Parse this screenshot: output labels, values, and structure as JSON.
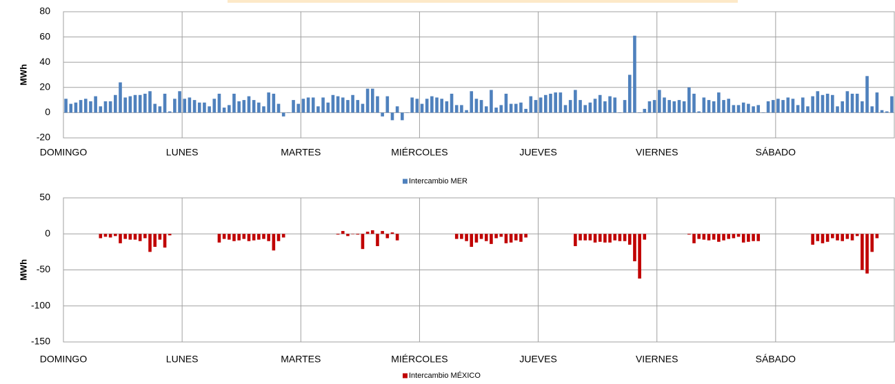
{
  "chart_data": [
    {
      "type": "bar",
      "y_label": "MWh",
      "legend_position": "bottom",
      "grid": true,
      "categories": [
        "DOMINGO",
        null,
        null,
        null,
        null,
        null,
        null,
        null,
        null,
        null,
        null,
        null,
        null,
        null,
        null,
        null,
        null,
        null,
        null,
        null,
        null,
        null,
        null,
        null,
        "LUNES",
        null,
        null,
        null,
        null,
        null,
        null,
        null,
        null,
        null,
        null,
        null,
        null,
        null,
        null,
        null,
        null,
        null,
        null,
        null,
        null,
        null,
        null,
        null,
        "MARTES",
        null,
        null,
        null,
        null,
        null,
        null,
        null,
        null,
        null,
        null,
        null,
        null,
        null,
        null,
        null,
        null,
        null,
        null,
        null,
        null,
        null,
        null,
        null,
        "MIÉRCOLES",
        null,
        null,
        null,
        null,
        null,
        null,
        null,
        null,
        null,
        null,
        null,
        null,
        null,
        null,
        null,
        null,
        null,
        null,
        null,
        null,
        null,
        null,
        null,
        "JUEVES",
        null,
        null,
        null,
        null,
        null,
        null,
        null,
        null,
        null,
        null,
        null,
        null,
        null,
        null,
        null,
        null,
        null,
        null,
        null,
        null,
        null,
        null,
        null,
        "VIERNES",
        null,
        null,
        null,
        null,
        null,
        null,
        null,
        null,
        null,
        null,
        null,
        null,
        null,
        null,
        null,
        null,
        null,
        null,
        null,
        null,
        null,
        null,
        null,
        "SÁBADO",
        null,
        null,
        null,
        null,
        null,
        null,
        null,
        null,
        null,
        null,
        null,
        null,
        null,
        null,
        null,
        null,
        null,
        null,
        null,
        null,
        null,
        null,
        null
      ],
      "ylim": [
        -20,
        80
      ],
      "yticks": [
        -20,
        0,
        20,
        40,
        60,
        80
      ],
      "series": [
        {
          "name": "Intercambio MER",
          "color": "#4f81bd",
          "values": [
            11,
            7,
            8,
            10,
            11,
            9,
            13,
            5,
            9,
            9,
            14,
            24,
            12,
            13,
            14,
            14,
            15,
            17,
            7,
            5,
            15,
            1,
            11,
            17,
            11,
            12,
            10,
            8,
            8,
            5,
            11,
            15,
            4,
            6,
            15,
            9,
            10,
            13,
            10,
            8,
            5,
            16,
            15,
            7,
            -3,
            0,
            10,
            7,
            11,
            12,
            12,
            5,
            12,
            8,
            14,
            13,
            12,
            10,
            14,
            10,
            7,
            19,
            19,
            13,
            -3,
            13,
            -6,
            5,
            -6,
            0,
            12,
            11,
            7,
            11,
            13,
            12,
            11,
            9,
            15,
            6,
            6,
            2,
            17,
            11,
            10,
            5,
            18,
            4,
            6,
            15,
            7,
            7,
            8,
            3,
            13,
            10,
            12,
            14,
            15,
            16,
            16,
            6,
            10,
            18,
            10,
            6,
            8,
            11,
            14,
            9,
            13,
            12,
            0,
            10,
            30,
            61,
            0,
            3,
            9,
            10,
            18,
            12,
            10,
            9,
            10,
            9,
            20,
            15,
            1,
            12,
            10,
            9,
            16,
            10,
            11,
            6,
            6,
            8,
            7,
            5,
            6,
            0,
            9,
            10,
            11,
            10,
            12,
            11,
            6,
            12,
            5,
            13,
            17,
            14,
            15,
            14,
            5,
            9,
            17,
            15,
            15,
            9,
            29,
            5,
            16,
            2,
            1,
            13
          ]
        }
      ]
    },
    {
      "type": "bar",
      "y_label": "MWh",
      "legend_position": "bottom",
      "grid": true,
      "categories": [
        "DOMINGO",
        null,
        null,
        null,
        null,
        null,
        null,
        null,
        null,
        null,
        null,
        null,
        null,
        null,
        null,
        null,
        null,
        null,
        null,
        null,
        null,
        null,
        null,
        null,
        "LUNES",
        null,
        null,
        null,
        null,
        null,
        null,
        null,
        null,
        null,
        null,
        null,
        null,
        null,
        null,
        null,
        null,
        null,
        null,
        null,
        null,
        null,
        null,
        null,
        "MARTES",
        null,
        null,
        null,
        null,
        null,
        null,
        null,
        null,
        null,
        null,
        null,
        null,
        null,
        null,
        null,
        null,
        null,
        null,
        null,
        null,
        null,
        null,
        null,
        "MIÉRCOLES",
        null,
        null,
        null,
        null,
        null,
        null,
        null,
        null,
        null,
        null,
        null,
        null,
        null,
        null,
        null,
        null,
        null,
        null,
        null,
        null,
        null,
        null,
        null,
        "JUEVES",
        null,
        null,
        null,
        null,
        null,
        null,
        null,
        null,
        null,
        null,
        null,
        null,
        null,
        null,
        null,
        null,
        null,
        null,
        null,
        null,
        null,
        null,
        null,
        "VIERNES",
        null,
        null,
        null,
        null,
        null,
        null,
        null,
        null,
        null,
        null,
        null,
        null,
        null,
        null,
        null,
        null,
        null,
        null,
        null,
        null,
        null,
        null,
        null,
        "SÁBADO",
        null,
        null,
        null,
        null,
        null,
        null,
        null,
        null,
        null,
        null,
        null,
        null,
        null,
        null,
        null,
        null,
        null,
        null,
        null,
        null,
        null,
        null,
        null
      ],
      "ylim": [
        -150,
        50
      ],
      "yticks": [
        -150,
        -100,
        -50,
        0,
        50
      ],
      "series": [
        {
          "name": "Intercambio MÉXICO",
          "color": "#c00000",
          "values": [
            null,
            null,
            null,
            null,
            null,
            null,
            null,
            -6,
            -4,
            -5,
            -3,
            -13,
            -7,
            -8,
            -8,
            -10,
            -6,
            -25,
            -18,
            -8,
            -19,
            -2,
            null,
            null,
            null,
            null,
            null,
            null,
            null,
            null,
            null,
            -12,
            -7,
            -8,
            -10,
            -9,
            -7,
            -10,
            -9,
            -8,
            -7,
            -10,
            -23,
            -10,
            -5,
            null,
            null,
            null,
            null,
            null,
            null,
            null,
            null,
            null,
            null,
            -1,
            4,
            -3,
            0,
            -1,
            -21,
            3,
            5,
            -17,
            4,
            -6,
            2,
            -9,
            null,
            null,
            null,
            null,
            null,
            null,
            null,
            null,
            null,
            null,
            null,
            -7,
            -7,
            -10,
            -18,
            -12,
            -7,
            -10,
            -14,
            -6,
            -4,
            -13,
            -12,
            -9,
            -11,
            -5,
            null,
            null,
            null,
            null,
            null,
            null,
            null,
            null,
            null,
            -17,
            -9,
            -9,
            -9,
            -12,
            -11,
            -12,
            -12,
            -9,
            -10,
            -10,
            -15,
            -38,
            -62,
            -8,
            null,
            null,
            null,
            null,
            null,
            null,
            null,
            null,
            -1,
            -13,
            -7,
            -8,
            -9,
            -8,
            -11,
            -9,
            -7,
            -6,
            -4,
            -12,
            -11,
            -10,
            -10,
            null,
            null,
            null,
            null,
            null,
            null,
            null,
            null,
            null,
            null,
            -15,
            -10,
            -13,
            -11,
            -6,
            -9,
            -10,
            -7,
            -9,
            -3,
            -50,
            -55,
            -25,
            -6,
            null,
            null,
            null
          ]
        }
      ]
    }
  ]
}
